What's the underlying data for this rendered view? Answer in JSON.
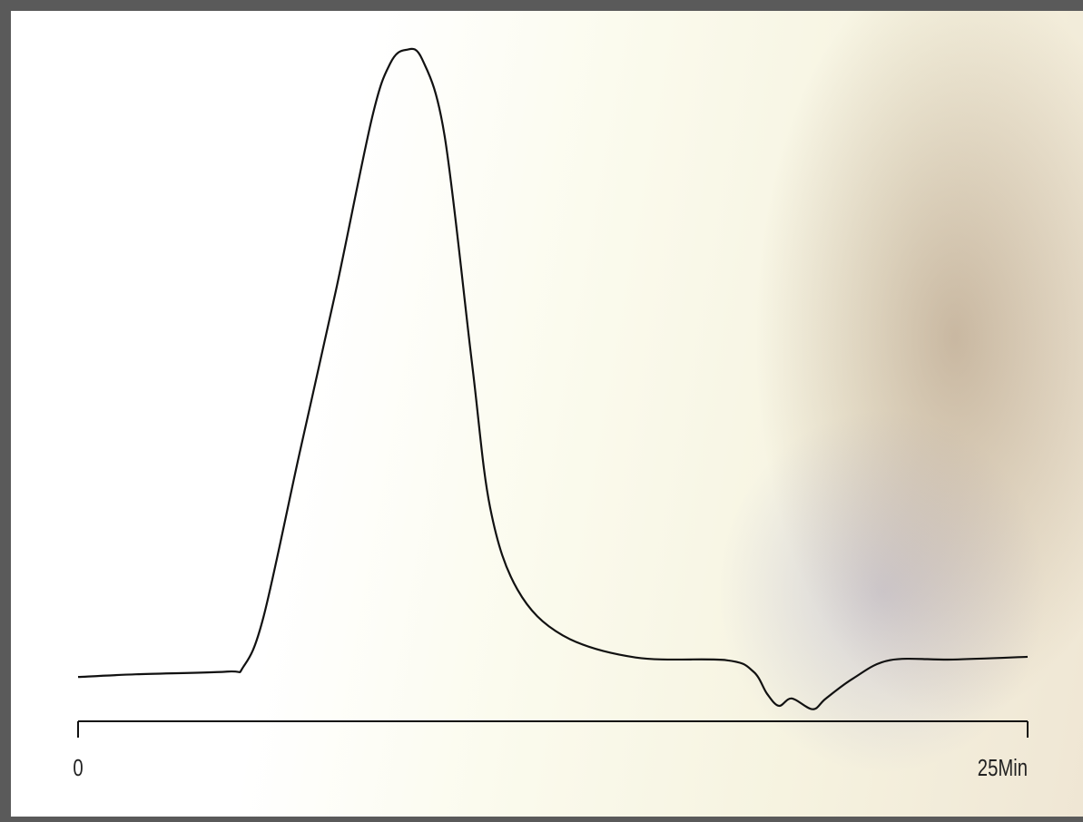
{
  "chart_data": {
    "type": "line",
    "x": [
      0,
      1.53,
      3.92,
      4.35,
      4.88,
      5.83,
      6.79,
      7.74,
      8.22,
      8.63,
      9.06,
      9.65,
      10.37,
      10.85,
      11.57,
      12.76,
      14.68,
      17.07,
      17.78,
      18.14,
      18.45,
      18.79,
      19.34,
      19.69,
      20.41,
      21.37,
      23.04,
      25
    ],
    "values": [
      6.6,
      7.0,
      7.4,
      8.1,
      15.5,
      39.9,
      64.2,
      89.9,
      98.0,
      100,
      98.6,
      87.2,
      53.4,
      31.8,
      19.6,
      12.8,
      9.5,
      9.1,
      7.4,
      4.1,
      2.3,
      3.4,
      1.8,
      3.4,
      6.4,
      9.1,
      9.2,
      9.6
    ],
    "color": "#111111",
    "xlim": [
      0,
      25
    ],
    "xticks": [
      0,
      {
        "value": 25,
        "label": "25Min"
      }
    ],
    "ylim": [
      0,
      100
    ]
  }
}
